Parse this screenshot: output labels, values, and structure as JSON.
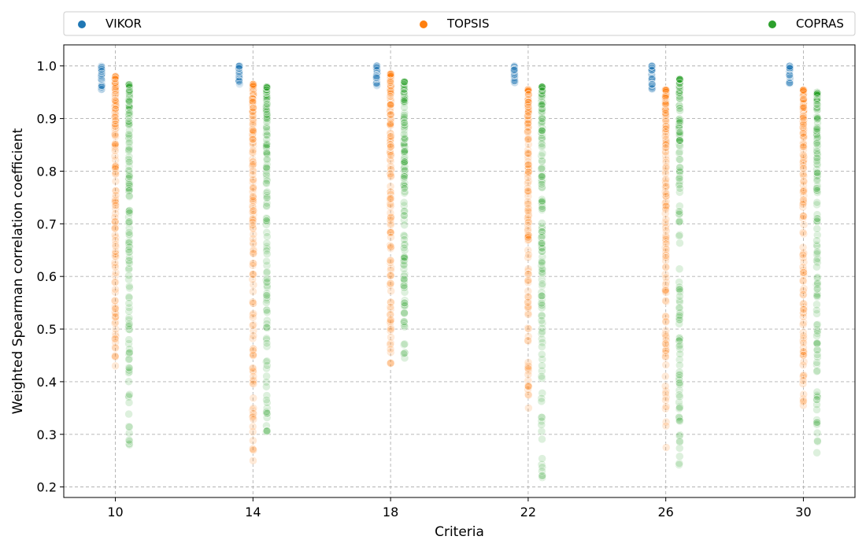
{
  "chart_data": {
    "type": "scatter",
    "xlabel": "Criteria",
    "ylabel": "Weighted Spearman correlation coefficient",
    "title": "",
    "x_ticks": [
      10,
      14,
      18,
      22,
      26,
      30
    ],
    "y_ticks": [
      0.2,
      0.3,
      0.4,
      0.5,
      0.6,
      0.7,
      0.8,
      0.9,
      1.0
    ],
    "y_tick_labels": [
      "0.2",
      "0.3",
      "0.4",
      "0.5",
      "0.6",
      "0.7",
      "0.8",
      "0.9",
      "1.0"
    ],
    "ylim": [
      0.18,
      1.04
    ],
    "xlim": [
      8.5,
      31.5
    ],
    "grid": true,
    "legend_position": "top",
    "series": [
      {
        "name": "VIKOR",
        "color": "#1f77b4",
        "x_offset": -0.4,
        "ranges": [
          {
            "x": 10,
            "min": 0.955,
            "max": 1.0
          },
          {
            "x": 14,
            "min": 0.965,
            "max": 1.0
          },
          {
            "x": 18,
            "min": 0.96,
            "max": 1.0
          },
          {
            "x": 22,
            "min": 0.965,
            "max": 1.0
          },
          {
            "x": 26,
            "min": 0.955,
            "max": 1.0
          },
          {
            "x": 30,
            "min": 0.965,
            "max": 1.0
          }
        ]
      },
      {
        "name": "TOPSIS",
        "color": "#ff7f0e",
        "x_offset": 0,
        "ranges": [
          {
            "x": 10,
            "min": 0.43,
            "max": 0.98
          },
          {
            "x": 14,
            "min": 0.25,
            "max": 0.965
          },
          {
            "x": 18,
            "min": 0.435,
            "max": 0.985
          },
          {
            "x": 22,
            "min": 0.35,
            "max": 0.955
          },
          {
            "x": 26,
            "min": 0.275,
            "max": 0.955
          },
          {
            "x": 30,
            "min": 0.355,
            "max": 0.955
          }
        ]
      },
      {
        "name": "COPRAS",
        "color": "#2ca02c",
        "x_offset": 0.4,
        "ranges": [
          {
            "x": 10,
            "min": 0.28,
            "max": 0.965
          },
          {
            "x": 14,
            "min": 0.305,
            "max": 0.96
          },
          {
            "x": 18,
            "min": 0.445,
            "max": 0.97
          },
          {
            "x": 22,
            "min": 0.218,
            "max": 0.96
          },
          {
            "x": 26,
            "min": 0.242,
            "max": 0.975
          },
          {
            "x": 30,
            "min": 0.265,
            "max": 0.95
          }
        ]
      }
    ]
  }
}
